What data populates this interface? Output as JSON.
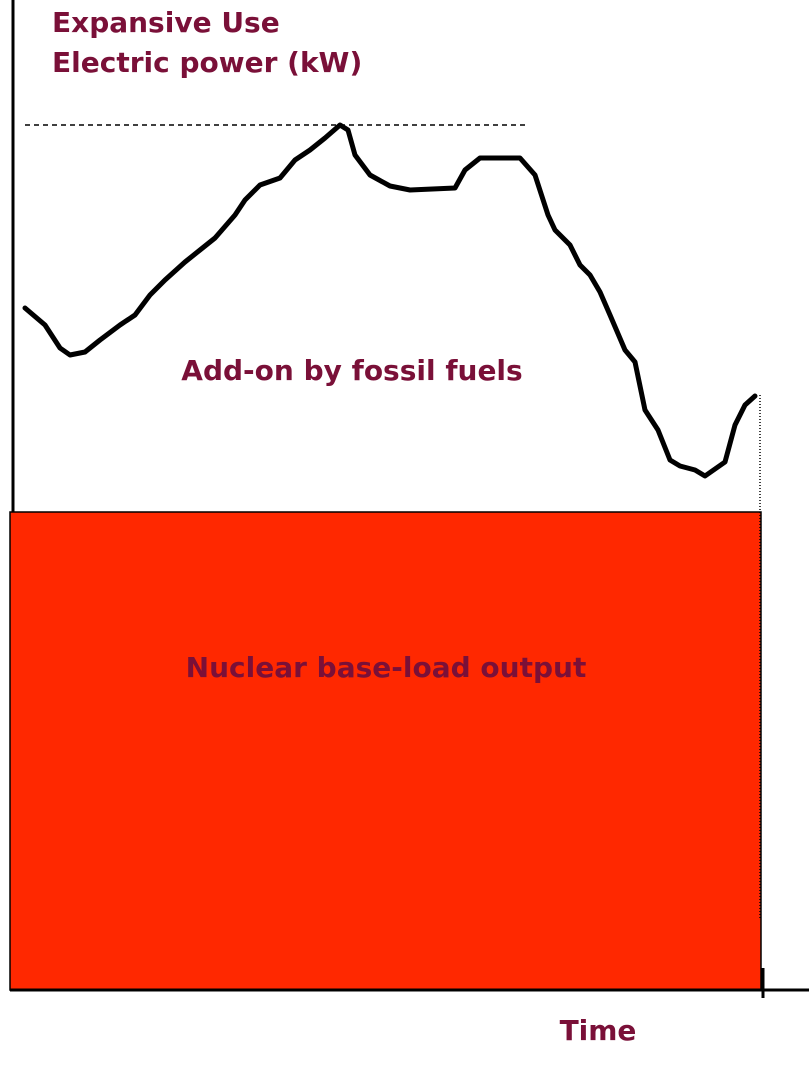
{
  "y_axis_label": {
    "line1": "Expansive Use",
    "line2": "Electric power (kW)"
  },
  "regions": {
    "upper": "Add-on by fossil fuels",
    "lower": "Nuclear base-load output"
  },
  "x_axis_label": "Time"
}
